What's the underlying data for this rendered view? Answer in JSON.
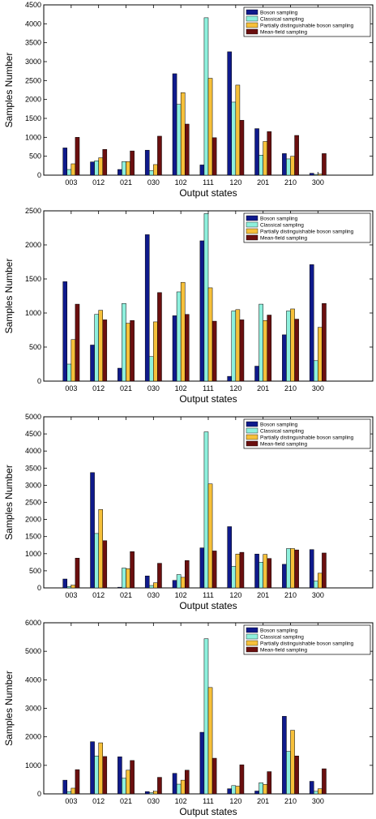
{
  "chart_data": [
    {
      "type": "bar",
      "categories": [
        "003",
        "012",
        "021",
        "030",
        "102",
        "111",
        "120",
        "201",
        "210",
        "300"
      ],
      "xlabel": "Output states",
      "ylabel": "Samples Number",
      "ylim": [
        0,
        4500
      ],
      "yticks": [
        0,
        500,
        1000,
        1500,
        2000,
        2500,
        3000,
        3500,
        4000,
        4500
      ],
      "legend_position": "top-right",
      "grid": false,
      "series": [
        {
          "name": "Boson sampling",
          "color": "#0f1a8c",
          "values": [
            720,
            350,
            150,
            660,
            2680,
            270,
            3260,
            1230,
            570,
            50
          ]
        },
        {
          "name": "Classical sampling",
          "color": "#8ef0dd",
          "values": [
            150,
            380,
            360,
            120,
            1870,
            4160,
            1930,
            530,
            430,
            20
          ]
        },
        {
          "name": "Partially distinguishable boson sampling",
          "color": "#f6c03a",
          "values": [
            300,
            460,
            360,
            280,
            2180,
            2560,
            2380,
            890,
            500,
            30
          ]
        },
        {
          "name": "Mean-field sampling",
          "color": "#6b0f0f",
          "values": [
            1000,
            680,
            640,
            1030,
            1350,
            990,
            1450,
            1150,
            1050,
            570
          ]
        }
      ]
    },
    {
      "type": "bar",
      "categories": [
        "003",
        "012",
        "021",
        "030",
        "102",
        "111",
        "120",
        "201",
        "210",
        "300"
      ],
      "xlabel": "Output states",
      "ylabel": "Samples Number",
      "ylim": [
        0,
        2500
      ],
      "yticks": [
        0,
        500,
        1000,
        1500,
        2000,
        2500
      ],
      "legend_position": "top-right",
      "grid": false,
      "series": [
        {
          "name": "Boson sampling",
          "color": "#0f1a8c",
          "values": [
            1460,
            530,
            190,
            2150,
            960,
            2060,
            70,
            220,
            680,
            1710
          ]
        },
        {
          "name": "Classical sampling",
          "color": "#8ef0dd",
          "values": [
            250,
            980,
            1140,
            360,
            1310,
            2460,
            1030,
            1130,
            1030,
            300
          ]
        },
        {
          "name": "Partially distinguishable boson sampling",
          "color": "#f6c03a",
          "values": [
            610,
            1040,
            850,
            870,
            1450,
            1370,
            1050,
            890,
            1060,
            790
          ]
        },
        {
          "name": "Mean-field sampling",
          "color": "#6b0f0f",
          "values": [
            1130,
            900,
            890,
            1300,
            980,
            880,
            900,
            970,
            910,
            1140
          ]
        }
      ]
    },
    {
      "type": "bar",
      "categories": [
        "003",
        "012",
        "021",
        "030",
        "102",
        "111",
        "120",
        "201",
        "210",
        "300"
      ],
      "xlabel": "Output states",
      "ylabel": "Samples Number",
      "ylim": [
        0,
        5000
      ],
      "yticks": [
        0,
        500,
        1000,
        1500,
        2000,
        2500,
        3000,
        3500,
        4000,
        4500,
        5000
      ],
      "legend_position": "top-right",
      "grid": false,
      "series": [
        {
          "name": "Boson sampling",
          "color": "#0f1a8c",
          "values": [
            260,
            3370,
            20,
            350,
            220,
            1170,
            1790,
            990,
            690,
            1120
          ]
        },
        {
          "name": "Classical sampling",
          "color": "#8ef0dd",
          "values": [
            40,
            1590,
            580,
            70,
            390,
            4560,
            630,
            750,
            1150,
            200
          ]
        },
        {
          "name": "Partially distinguishable boson sampling",
          "color": "#f6c03a",
          "values": [
            80,
            2290,
            560,
            150,
            310,
            3040,
            990,
            980,
            1150,
            430
          ]
        },
        {
          "name": "Mean-field sampling",
          "color": "#6b0f0f",
          "values": [
            870,
            1380,
            1060,
            720,
            800,
            1080,
            1040,
            860,
            1110,
            1020
          ]
        }
      ]
    },
    {
      "type": "bar",
      "categories": [
        "003",
        "012",
        "021",
        "030",
        "102",
        "111",
        "120",
        "201",
        "210",
        "300"
      ],
      "xlabel": "Output states",
      "ylabel": "Samples Number",
      "ylim": [
        0,
        6000
      ],
      "yticks": [
        0,
        1000,
        2000,
        3000,
        4000,
        5000,
        6000
      ],
      "legend_position": "top-right",
      "grid": false,
      "series": [
        {
          "name": "Boson sampling",
          "color": "#0f1a8c",
          "values": [
            480,
            1830,
            1300,
            80,
            720,
            2160,
            180,
            100,
            2720,
            440
          ]
        },
        {
          "name": "Classical sampling",
          "color": "#8ef0dd",
          "values": [
            80,
            1330,
            550,
            40,
            340,
            5440,
            290,
            390,
            1490,
            90
          ]
        },
        {
          "name": "Partially distinguishable boson sampling",
          "color": "#f6c03a",
          "values": [
            200,
            1790,
            830,
            90,
            480,
            3730,
            270,
            330,
            2230,
            180
          ]
        },
        {
          "name": "Mean-field sampling",
          "color": "#6b0f0f",
          "values": [
            850,
            1310,
            1170,
            580,
            830,
            1250,
            1020,
            780,
            1330,
            880
          ]
        }
      ]
    }
  ]
}
